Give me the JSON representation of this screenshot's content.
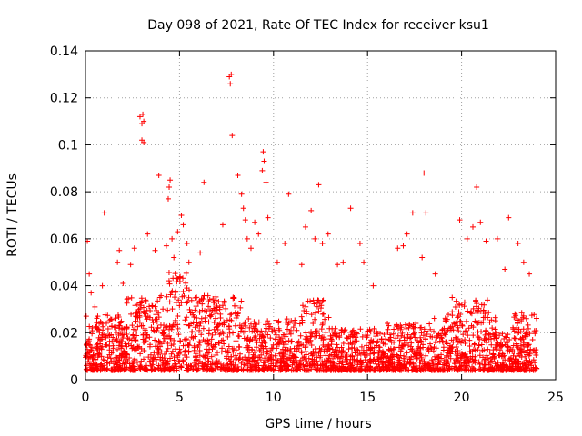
{
  "chart_data": {
    "type": "scatter",
    "title": "Day 098 of 2021, Rate Of TEC Index for receiver ksu1",
    "xlabel": "GPS time / hours",
    "ylabel": "ROTI / TECUs",
    "xlim": [
      0,
      25
    ],
    "ylim": [
      0,
      0.14
    ],
    "xticks": [
      "0",
      "5",
      "10",
      "15",
      "20",
      "25"
    ],
    "yticks": [
      "0",
      "0.02",
      "0.04",
      "0.06",
      "0.08",
      "0.1",
      "0.12",
      "0.14"
    ],
    "grid": true,
    "marker": "plus",
    "marker_color": "#ff0000",
    "series": [
      {
        "x": [
          0.1,
          0.2,
          0.3,
          0.5,
          0.9,
          1.0,
          1.7,
          1.8,
          2.0,
          2.4,
          2.6,
          2.9,
          3.0,
          3.0,
          3.05,
          3.1,
          3.1,
          3.3,
          3.7,
          3.9,
          4.3,
          4.4,
          4.45,
          4.5,
          4.6,
          4.7,
          4.9,
          5.1,
          5.2,
          5.4,
          5.5,
          6.1,
          6.3,
          7.3,
          7.65,
          7.7,
          7.75,
          7.8,
          8.1,
          8.3,
          8.4,
          8.5,
          8.6,
          8.8,
          9.0,
          9.2,
          9.4,
          9.45,
          9.5,
          9.6,
          9.7,
          10.2,
          10.6,
          10.8,
          11.5,
          11.7,
          12.0,
          12.2,
          12.4,
          12.6,
          12.9,
          13.4,
          13.7,
          14.1,
          14.6,
          14.8,
          15.3,
          16.6,
          16.9,
          17.1,
          17.4,
          17.9,
          18.0,
          18.1,
          18.6,
          19.5,
          19.9,
          20.3,
          20.6,
          20.8,
          21.0,
          21.3,
          21.9,
          22.3,
          22.5,
          23.0,
          23.3,
          23.6
        ],
        "y": [
          0.059,
          0.045,
          0.037,
          0.031,
          0.04,
          0.071,
          0.05,
          0.055,
          0.041,
          0.049,
          0.056,
          0.112,
          0.109,
          0.102,
          0.113,
          0.11,
          0.101,
          0.062,
          0.055,
          0.087,
          0.057,
          0.077,
          0.082,
          0.085,
          0.06,
          0.052,
          0.063,
          0.07,
          0.066,
          0.058,
          0.05,
          0.054,
          0.084,
          0.066,
          0.129,
          0.126,
          0.13,
          0.104,
          0.087,
          0.079,
          0.073,
          0.068,
          0.06,
          0.056,
          0.067,
          0.062,
          0.089,
          0.097,
          0.093,
          0.084,
          0.069,
          0.05,
          0.058,
          0.079,
          0.049,
          0.065,
          0.072,
          0.06,
          0.083,
          0.058,
          0.062,
          0.049,
          0.05,
          0.073,
          0.058,
          0.05,
          0.04,
          0.056,
          0.057,
          0.062,
          0.071,
          0.052,
          0.088,
          0.071,
          0.045,
          0.035,
          0.068,
          0.06,
          0.065,
          0.082,
          0.067,
          0.059,
          0.06,
          0.047,
          0.069,
          0.058,
          0.05,
          0.045
        ]
      }
    ]
  }
}
